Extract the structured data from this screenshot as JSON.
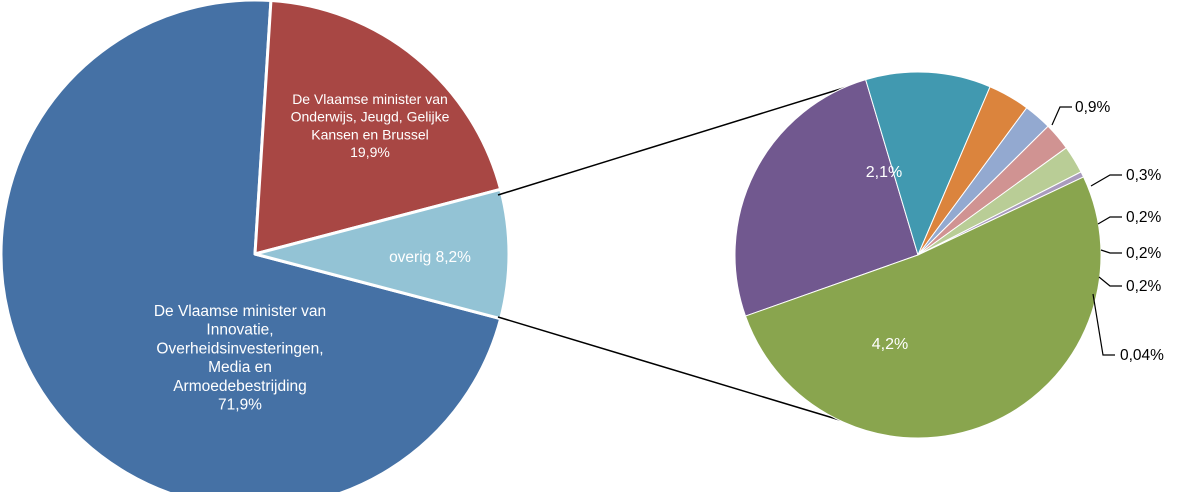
{
  "chart_data": {
    "type": "pie",
    "title": "",
    "main_pie": {
      "slices": [
        {
          "label_lines": [
            "De Vlaamse minister van",
            "Innovatie,",
            "Overheidsinvesteringen,",
            "Media en",
            "Armoedebestrijding",
            "71,9%"
          ],
          "value": 71.9,
          "color": "#4571a5"
        },
        {
          "label_lines": [
            "De Vlaamse minister van",
            "Onderwijs, Jeugd, Gelijke",
            "Kansen en Brussel",
            "19,9%"
          ],
          "value": 19.9,
          "color": "#a84744"
        },
        {
          "label_lines": [
            "overig 8,2%"
          ],
          "value": 8.2,
          "color": "#93c3d5"
        }
      ]
    },
    "breakdown_pie": {
      "parent": "overig 8,2%",
      "slices": [
        {
          "label": "2,1%",
          "value": 2.1,
          "color": "#71588f"
        },
        {
          "label": "0,9%",
          "value": 0.9,
          "color": "#4199b0"
        },
        {
          "label": "0,3%",
          "value": 0.3,
          "color": "#db843d"
        },
        {
          "label": "0,2%",
          "value": 0.2,
          "color": "#93a9d0"
        },
        {
          "label": "0,2%",
          "value": 0.2,
          "color": "#d09392"
        },
        {
          "label": "0,2%",
          "value": 0.2,
          "color": "#b9cd96"
        },
        {
          "label": "0,04%",
          "value": 0.04,
          "color": "#a99bbd"
        },
        {
          "label": "4,2%",
          "value": 4.2,
          "color": "#89a54e"
        }
      ]
    }
  }
}
